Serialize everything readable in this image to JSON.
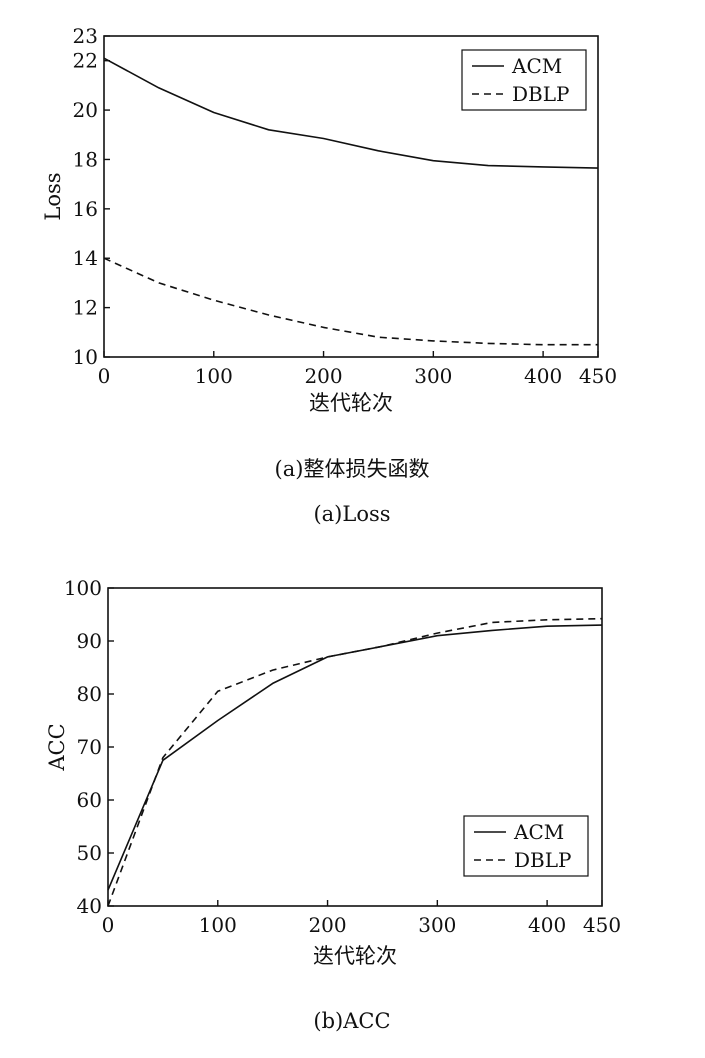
{
  "chart_data": [
    {
      "type": "line",
      "title": "",
      "xlabel": "迭代轮次",
      "ylabel": "Loss",
      "xlim": [
        0,
        450
      ],
      "ylim": [
        10,
        23
      ],
      "xticks": [
        0,
        100,
        200,
        300,
        400,
        450
      ],
      "yticks": [
        10,
        12,
        14,
        16,
        18,
        20,
        22,
        23
      ],
      "grid": false,
      "legend": "top-right",
      "captions": [
        "(a)整体损失函数",
        "(a)Loss"
      ],
      "series": [
        {
          "name": "ACM",
          "style": "solid",
          "color": "#111111",
          "x": [
            0,
            50,
            100,
            150,
            200,
            250,
            300,
            350,
            400,
            450
          ],
          "y": [
            22.1,
            20.9,
            19.9,
            19.2,
            18.85,
            18.35,
            17.95,
            17.75,
            17.7,
            17.65
          ]
        },
        {
          "name": "DBLP",
          "style": "dashed",
          "color": "#111111",
          "x": [
            0,
            50,
            100,
            150,
            200,
            250,
            300,
            350,
            400,
            450
          ],
          "y": [
            14.0,
            13.0,
            12.3,
            11.7,
            11.2,
            10.8,
            10.65,
            10.55,
            10.5,
            10.5
          ]
        }
      ]
    },
    {
      "type": "line",
      "title": "",
      "xlabel": "迭代轮次",
      "ylabel": "ACC",
      "xlim": [
        0,
        450
      ],
      "ylim": [
        40,
        100
      ],
      "xticks": [
        0,
        100,
        200,
        300,
        400,
        450
      ],
      "yticks": [
        40,
        50,
        60,
        70,
        80,
        90,
        100
      ],
      "grid": false,
      "legend": "bottom-right",
      "captions": [
        "(b)ACC"
      ],
      "series": [
        {
          "name": "ACM",
          "style": "solid",
          "color": "#111111",
          "x": [
            0,
            50,
            100,
            150,
            200,
            250,
            300,
            350,
            400,
            450
          ],
          "y": [
            43,
            67.5,
            75,
            82,
            87,
            89,
            91,
            92,
            92.8,
            93
          ]
        },
        {
          "name": "DBLP",
          "style": "dashed",
          "color": "#111111",
          "x": [
            0,
            50,
            100,
            150,
            200,
            250,
            300,
            350,
            400,
            450
          ],
          "y": [
            40,
            68,
            80.5,
            84.5,
            87,
            89,
            91.5,
            93.5,
            94,
            94.2
          ]
        }
      ]
    }
  ]
}
